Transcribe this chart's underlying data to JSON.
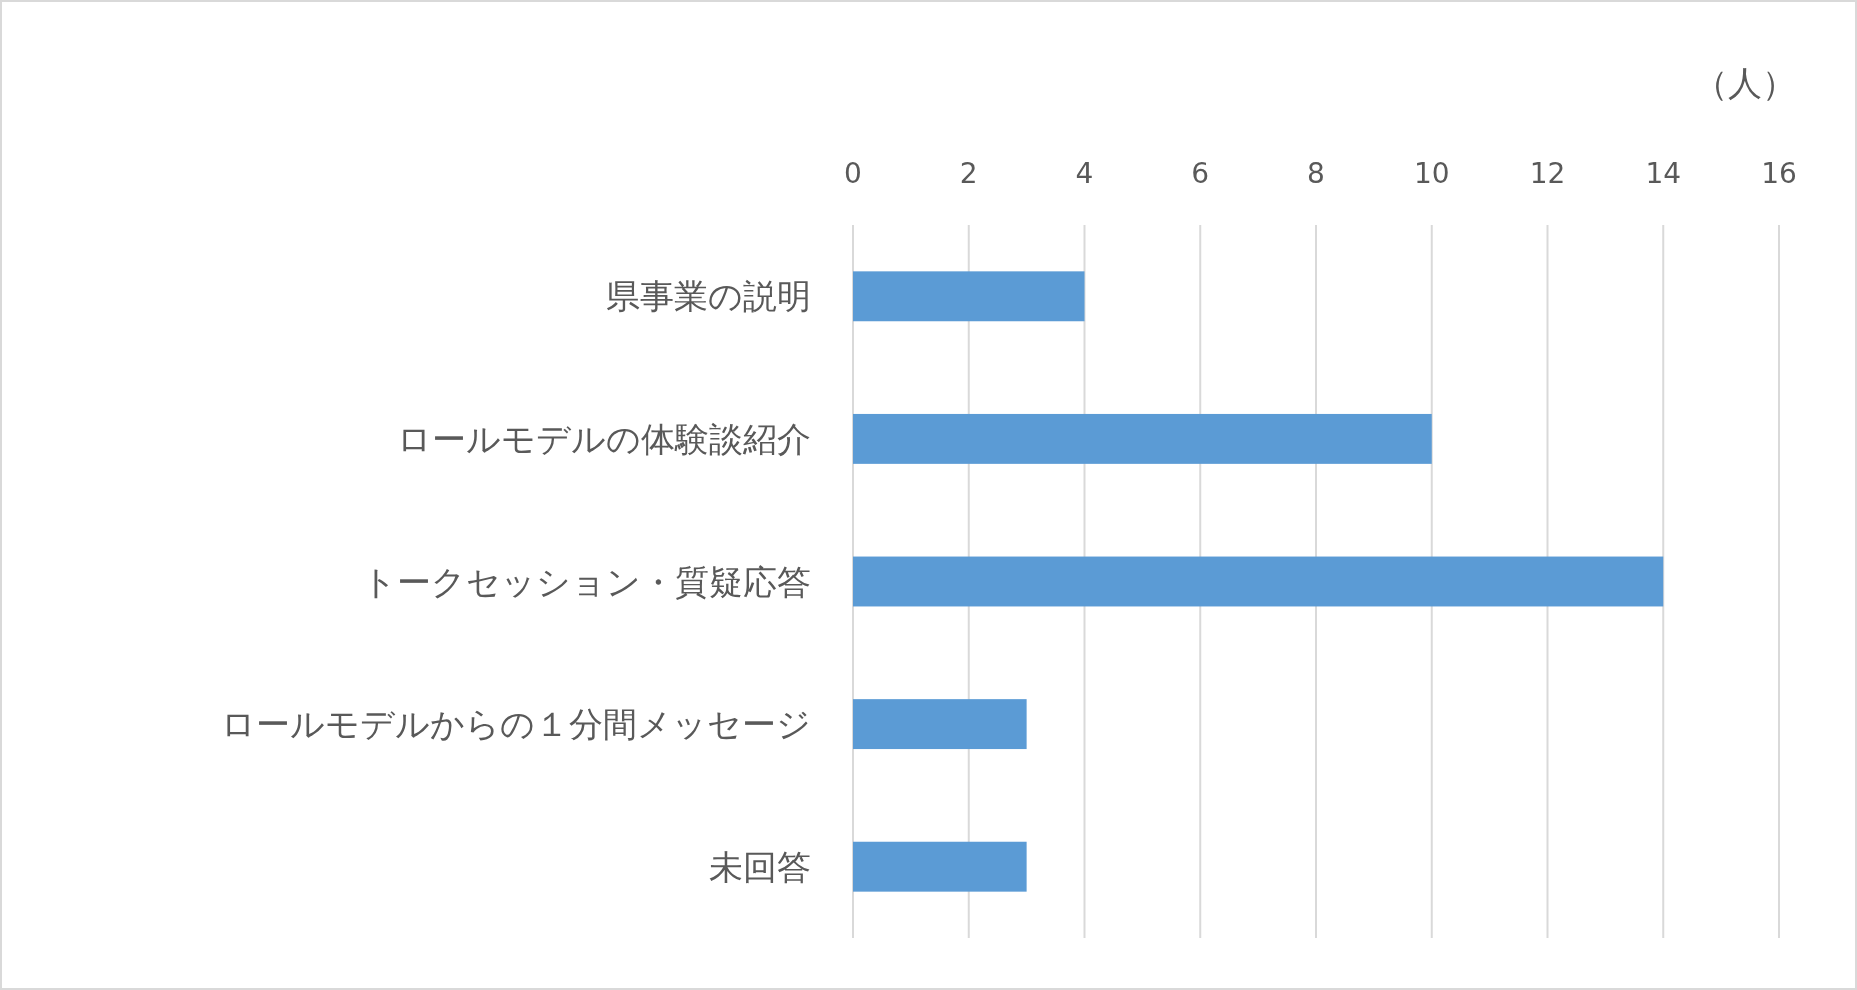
{
  "chart_data": {
    "type": "bar",
    "orientation": "horizontal",
    "xlabel": "（人）",
    "categories": [
      "県事業の説明",
      "ロールモデルの体験談紹介",
      "トークセッション・質疑応答",
      "ロールモデルからの１分間メッセージ",
      "未回答"
    ],
    "values": [
      4,
      10,
      14,
      3,
      3
    ],
    "color": "#5b9bd5",
    "xlim": [
      0,
      16
    ],
    "xticks": [
      0,
      2,
      4,
      6,
      8,
      10,
      12,
      14,
      16
    ],
    "grid": "x"
  }
}
